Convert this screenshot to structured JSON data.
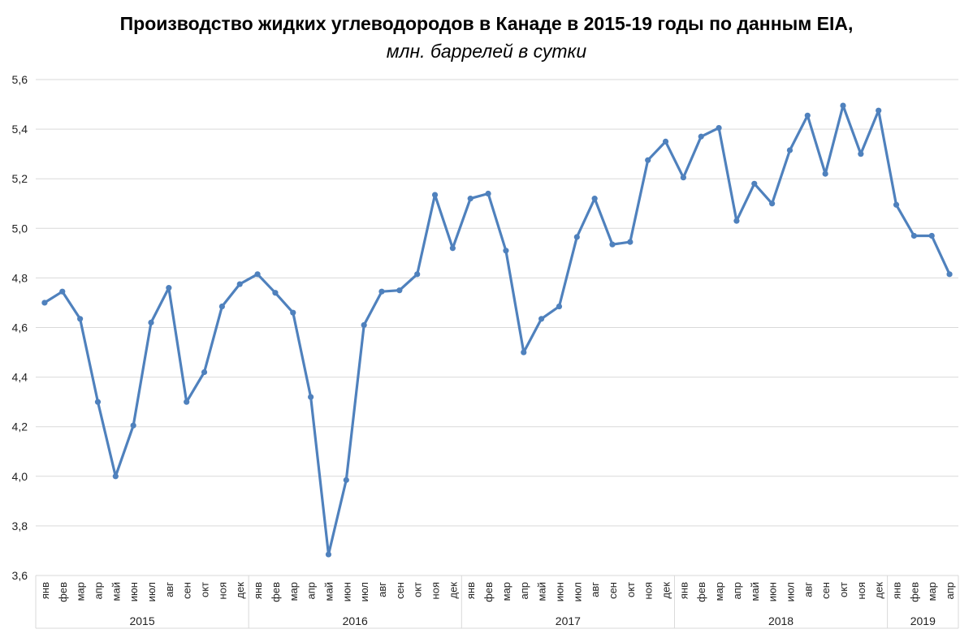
{
  "chart_data": {
    "type": "line",
    "title": "Производство жидких углеводородов в Канаде в 2015-19 годы по данным EIA,",
    "subtitle": "млн. баррелей в сутки",
    "xlabel": "",
    "ylabel": "",
    "ylim": [
      3.6,
      5.6
    ],
    "y_ticks": [
      "3,6",
      "3,8",
      "4,0",
      "4,2",
      "4,4",
      "4,6",
      "4,8",
      "5,0",
      "5,2",
      "5,4",
      "5,6"
    ],
    "y_tick_values": [
      3.6,
      3.8,
      4.0,
      4.2,
      4.4,
      4.6,
      4.8,
      5.0,
      5.2,
      5.4,
      5.6
    ],
    "grid": "horizontal",
    "line_color": "#4f81bd",
    "years": [
      {
        "label": "2015",
        "months": 12
      },
      {
        "label": "2016",
        "months": 12
      },
      {
        "label": "2017",
        "months": 12
      },
      {
        "label": "2018",
        "months": 12
      },
      {
        "label": "2019",
        "months": 4
      }
    ],
    "categories": [
      "янв",
      "фев",
      "мар",
      "апр",
      "май",
      "июн",
      "июл",
      "авг",
      "сен",
      "окт",
      "ноя",
      "дек",
      "янв",
      "фев",
      "мар",
      "апр",
      "май",
      "июн",
      "июл",
      "авг",
      "сен",
      "окт",
      "ноя",
      "дек",
      "янв",
      "фев",
      "мар",
      "апр",
      "май",
      "июн",
      "июл",
      "авг",
      "сен",
      "окт",
      "ноя",
      "дек",
      "янв",
      "фев",
      "мар",
      "апр",
      "май",
      "июн",
      "июл",
      "авг",
      "сен",
      "окт",
      "ноя",
      "дек",
      "янв",
      "фев",
      "мар",
      "апр"
    ],
    "series": [
      {
        "values": [
          4.7,
          4.745,
          4.635,
          4.3,
          4.0,
          4.205,
          4.62,
          4.76,
          4.3,
          4.42,
          4.685,
          4.775,
          4.815,
          4.74,
          4.66,
          4.32,
          3.685,
          3.985,
          4.61,
          4.745,
          4.75,
          4.815,
          5.135,
          4.92,
          5.12,
          5.14,
          4.91,
          4.5,
          4.635,
          4.685,
          4.965,
          5.12,
          4.935,
          4.945,
          5.275,
          5.35,
          5.205,
          5.37,
          5.405,
          5.03,
          5.18,
          5.1,
          5.315,
          5.455,
          5.22,
          5.495,
          5.3,
          5.475,
          5.095,
          4.97,
          4.97,
          4.815
        ]
      }
    ]
  }
}
